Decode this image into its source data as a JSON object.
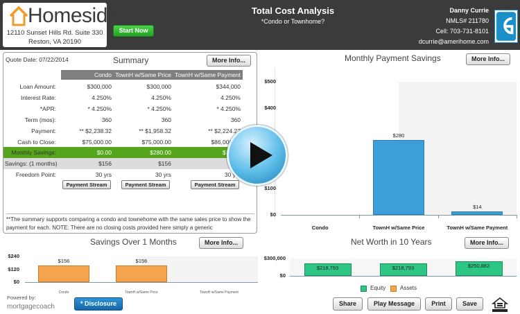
{
  "header": {
    "logo_text": "Homeside",
    "address1": "12110 Sunset Hills Rd. Suite 330",
    "address2": "Reston, VA 20190",
    "start_label": "Start Now",
    "title": "Total Cost Analysis",
    "subtitle": "*Condo or Townhome?",
    "agent": {
      "name": "Danny Currie",
      "nmls": "NMLS# 211780",
      "cell": "Cell: 703-731-8101",
      "email": "dcurrie@amerihome.com"
    }
  },
  "summary": {
    "quote_date": "Quote Date: 07/22/2014",
    "title": "Summary",
    "more_info": "More Info...",
    "columns": [
      "Condo",
      "TownH w/Same Price",
      "TownH w/Same Payment"
    ],
    "rows": [
      {
        "label": "Loan Amount:",
        "values": [
          "$300,000",
          "$300,000",
          "$344,000"
        ]
      },
      {
        "label": "Interest Rate:",
        "values": [
          "4.250%",
          "4.250%",
          "4.250%"
        ]
      },
      {
        "label": "*APR:",
        "values": [
          "* 4.250%",
          "* 4.250%",
          "* 4.250%"
        ]
      },
      {
        "label": "Term (mos):",
        "values": [
          "360",
          "360",
          "360"
        ]
      },
      {
        "label": "Payment:",
        "values": [
          "** $2,238.32",
          "** $1,958.32",
          "** $2,224.27"
        ]
      },
      {
        "label": "Cash to Close:",
        "values": [
          "$75,000.00",
          "$75,000.00",
          "$86,000.00"
        ]
      },
      {
        "label": "Monthly Savings:",
        "values": [
          "$0.00",
          "$280.00",
          "$14.05"
        ]
      },
      {
        "label": "Savings: (1 months)",
        "values": [
          "$156",
          "$156",
          ""
        ]
      },
      {
        "label": "Freedom Point:",
        "values": [
          "30 yrs",
          "30 yrs",
          "30 yrs"
        ]
      }
    ],
    "payment_stream": "Payment Stream",
    "note": "**The summary supports comparing a condo and townehome with the same sales price to show the payment for each. NOTE: There are no closing costs provided here simply a generic"
  },
  "monthly_chart": {
    "title": "Monthly Payment Savings",
    "more_info": "More Info...",
    "chart_data": {
      "type": "bar",
      "categories": [
        "Condo",
        "TownH w/Same Price",
        "TownH w/Same Payment"
      ],
      "values": [
        0,
        280,
        14
      ],
      "value_labels": [
        "",
        "$280",
        "$14"
      ],
      "ytick_labels": [
        "$500",
        "$400",
        "$100",
        "$0"
      ],
      "yticks": [
        500,
        400,
        100,
        0
      ],
      "ylim": [
        0,
        500
      ],
      "bar_color": "#3e9fd8"
    }
  },
  "savings_chart": {
    "title": "Savings Over 1 Months",
    "more_info": "More Info...",
    "chart_data": {
      "type": "bar",
      "categories": [
        "Condo",
        "TownH w/Same Price",
        "TownH w/Same Payment"
      ],
      "values": [
        156,
        156,
        0
      ],
      "value_labels": [
        "$156",
        "$156",
        ""
      ],
      "ytick_labels": [
        "$240",
        "$120",
        "$0"
      ],
      "yticks": [
        240,
        120,
        0
      ],
      "ylim": [
        0,
        240
      ],
      "bar_color": "#f5a44d"
    }
  },
  "networth_chart": {
    "title": "Net Worth in 10 Years",
    "more_info": "More Info...",
    "chart_data": {
      "type": "bar",
      "categories": [
        "Condo",
        "TownH w/Same Price",
        "TownH w/Same Payment"
      ],
      "values": [
        218793,
        218793,
        250882
      ],
      "value_labels": [
        "$218,793",
        "$218,793",
        "$250,882"
      ],
      "ytick_labels": [
        "$300,000",
        "$0"
      ],
      "yticks": [
        300000,
        0
      ],
      "ylim": [
        0,
        300000
      ],
      "legend": [
        "Equity",
        "Assets"
      ],
      "legend_colors": [
        "#2ec684",
        "#f5a44d"
      ]
    }
  },
  "footer": {
    "powered_by": "Powered by:",
    "brand": "mortgagecoach",
    "disclosure": "* Disclosure",
    "share": "Share",
    "play_message": "Play Message",
    "print": "Print",
    "save": "Save",
    "eho": "EQUAL HOUSING LENDER"
  }
}
